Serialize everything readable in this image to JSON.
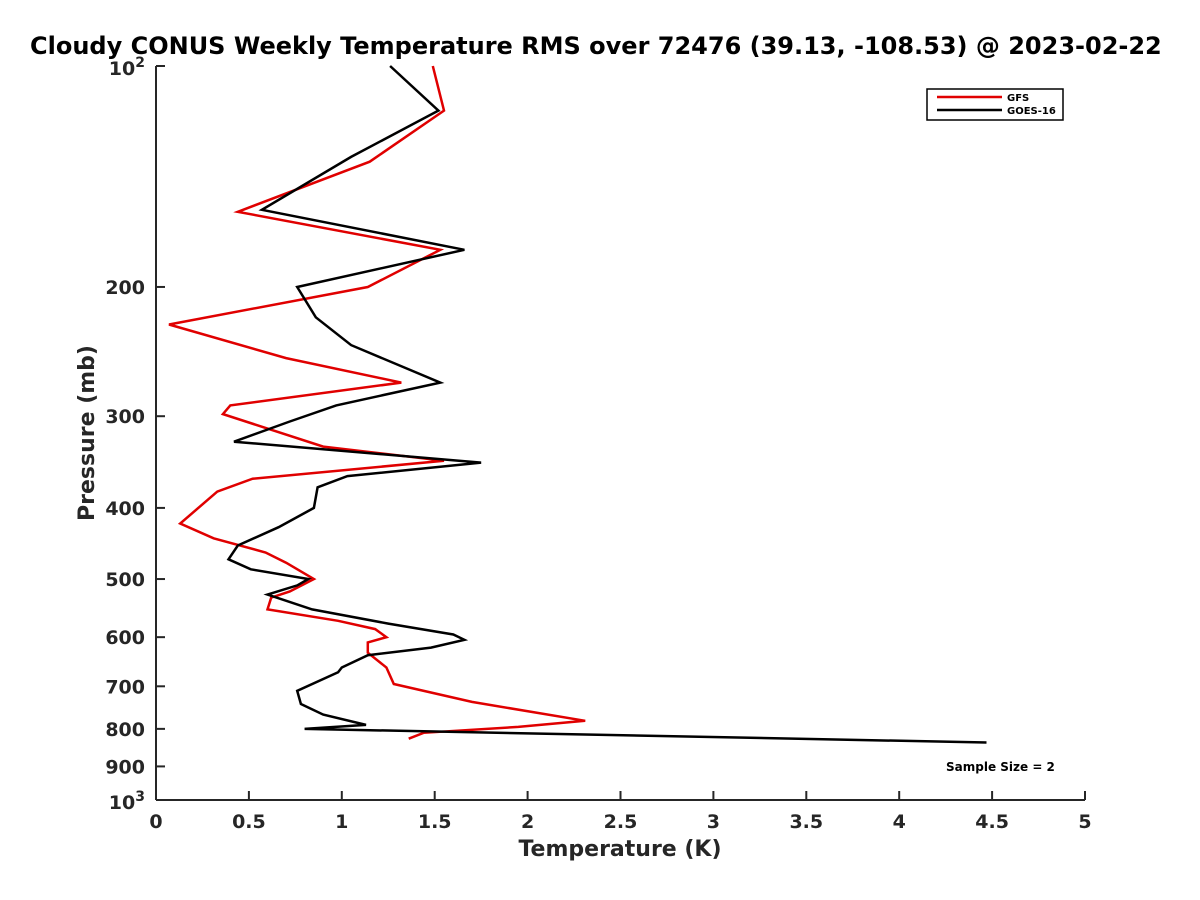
{
  "chart_data": {
    "type": "line",
    "title": "Cloudy CONUS Weekly Temperature RMS over 72476 (39.13, -108.53) @ 2023-02-22",
    "xlabel": "Temperature (K)",
    "ylabel": "Pressure (mb)",
    "xlim": [
      0,
      5
    ],
    "ylim": [
      100,
      1000
    ],
    "yscale": "log",
    "y_reversed": true,
    "grid": false,
    "legend_position": "top-right",
    "xticks": [
      0,
      0.5,
      1,
      1.5,
      2,
      2.5,
      3,
      3.5,
      4,
      4.5,
      5
    ],
    "xtick_labels": [
      "0",
      "0.5",
      "1",
      "1.5",
      "2",
      "2.5",
      "3",
      "3.5",
      "4",
      "4.5",
      "5"
    ],
    "yticks": [
      200,
      300,
      400,
      500,
      600,
      700,
      800,
      900
    ],
    "ytick_labels": [
      "200",
      "300",
      "400",
      "500",
      "600",
      "700",
      "800",
      "900"
    ],
    "ytick_pow_labels": [
      {
        "value": 100,
        "base": "10",
        "exp": "2"
      },
      {
        "value": 1000,
        "base": "10",
        "exp": "3"
      }
    ],
    "series": [
      {
        "name": "GFS",
        "color": "#e00000",
        "points": [
          [
            1.49,
            100
          ],
          [
            1.55,
            115
          ],
          [
            1.15,
            135
          ],
          [
            0.44,
            158
          ],
          [
            1.53,
            178
          ],
          [
            1.14,
            200
          ],
          [
            0.07,
            225
          ],
          [
            0.7,
            250
          ],
          [
            1.32,
            270
          ],
          [
            0.4,
            290
          ],
          [
            0.36,
            298
          ],
          [
            0.9,
            330
          ],
          [
            1.55,
            345
          ],
          [
            0.52,
            365
          ],
          [
            0.33,
            380
          ],
          [
            0.13,
            420
          ],
          [
            0.31,
            440
          ],
          [
            0.59,
            460
          ],
          [
            0.7,
            475
          ],
          [
            0.85,
            500
          ],
          [
            0.72,
            520
          ],
          [
            0.62,
            530
          ],
          [
            0.6,
            550
          ],
          [
            0.98,
            570
          ],
          [
            1.18,
            585
          ],
          [
            1.24,
            600
          ],
          [
            1.14,
            610
          ],
          [
            1.14,
            630
          ],
          [
            1.24,
            660
          ],
          [
            1.28,
            695
          ],
          [
            1.7,
            735
          ],
          [
            2.31,
            780
          ],
          [
            1.95,
            795
          ],
          [
            1.44,
            810
          ],
          [
            1.36,
            825
          ]
        ]
      },
      {
        "name": "GOES-16",
        "color": "#000000",
        "points": [
          [
            1.26,
            100
          ],
          [
            1.52,
            115
          ],
          [
            1.05,
            133
          ],
          [
            0.57,
            157
          ],
          [
            1.66,
            178
          ],
          [
            0.76,
            200
          ],
          [
            0.86,
            220
          ],
          [
            1.05,
            240
          ],
          [
            1.53,
            270
          ],
          [
            0.97,
            290
          ],
          [
            0.72,
            305
          ],
          [
            0.42,
            325
          ],
          [
            1.75,
            347
          ],
          [
            1.03,
            362
          ],
          [
            0.87,
            375
          ],
          [
            0.85,
            400
          ],
          [
            0.66,
            425
          ],
          [
            0.44,
            450
          ],
          [
            0.39,
            470
          ],
          [
            0.51,
            485
          ],
          [
            0.82,
            500
          ],
          [
            0.76,
            510
          ],
          [
            0.6,
            525
          ],
          [
            0.84,
            550
          ],
          [
            1.25,
            575
          ],
          [
            1.6,
            595
          ],
          [
            1.66,
            605
          ],
          [
            1.48,
            620
          ],
          [
            1.14,
            635
          ],
          [
            1.0,
            660
          ],
          [
            0.98,
            670
          ],
          [
            0.76,
            710
          ],
          [
            0.78,
            740
          ],
          [
            0.9,
            765
          ],
          [
            1.13,
            790
          ],
          [
            0.8,
            800
          ],
          [
            4.47,
            835
          ]
        ]
      }
    ],
    "annotations": [
      "Sample Size = 2"
    ]
  }
}
